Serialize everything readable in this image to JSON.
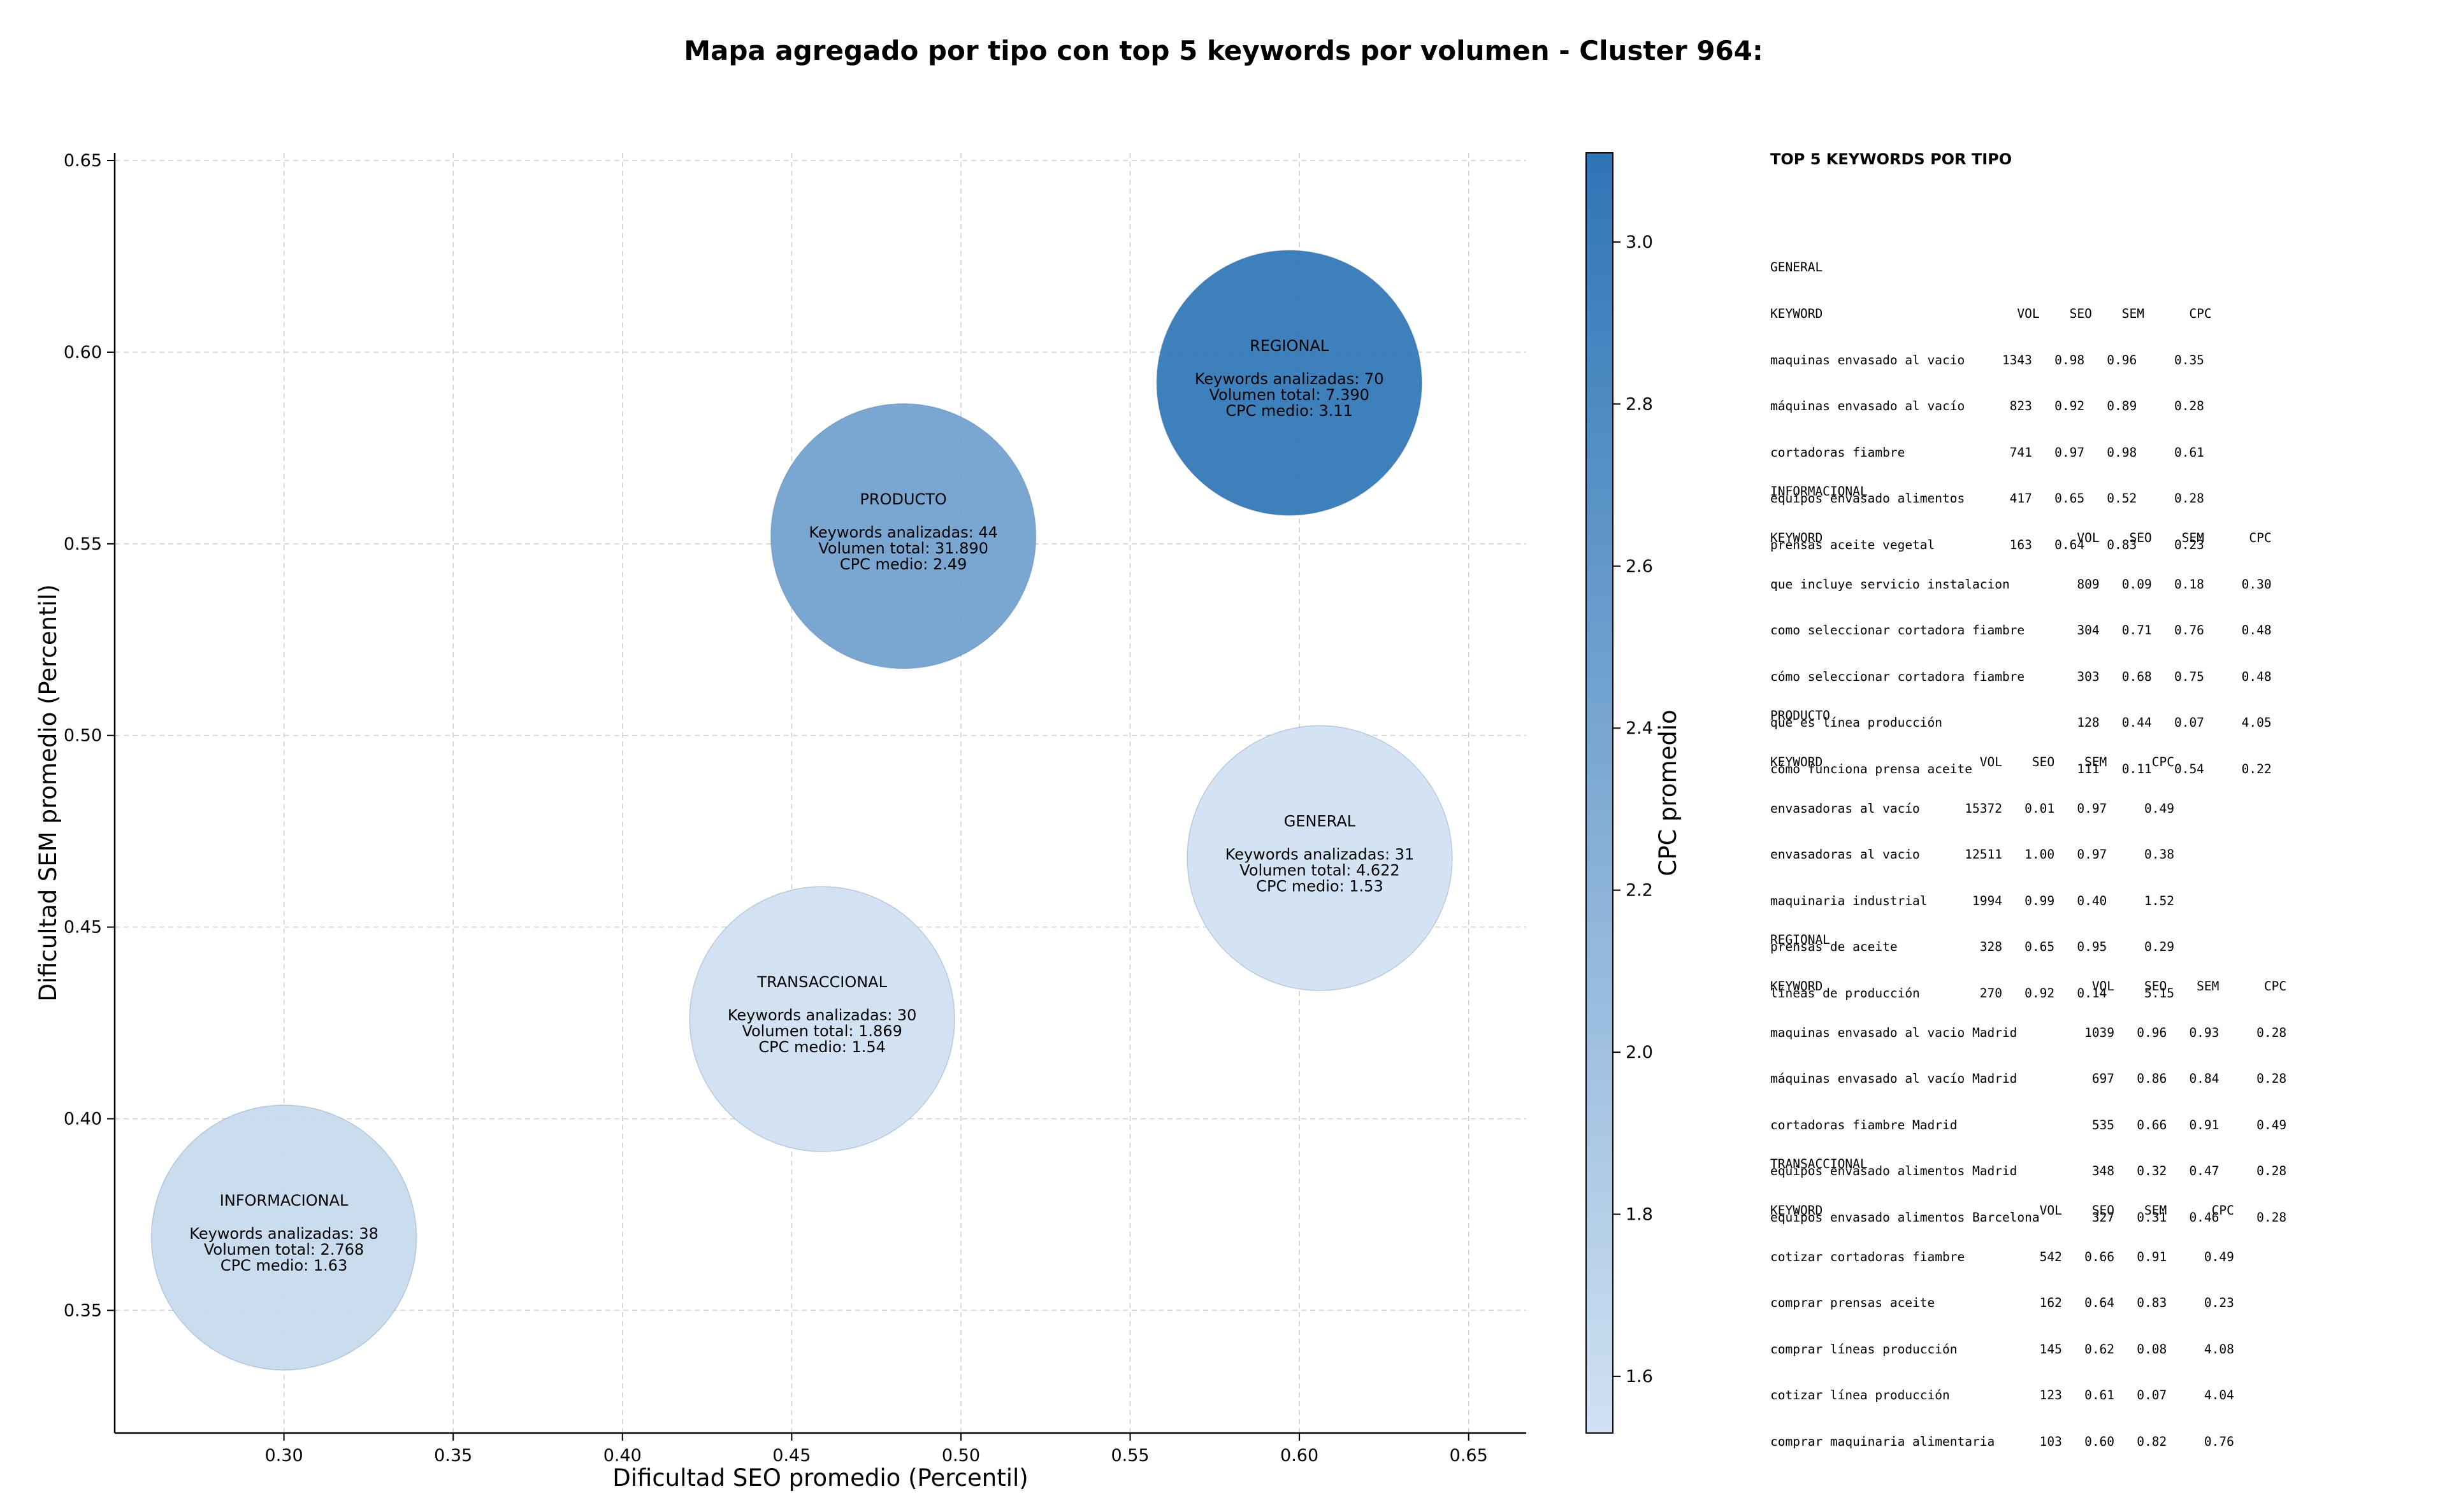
{
  "chart_data": {
    "type": "scatter",
    "title": "Mapa agregado por tipo con top 5 keywords por volumen - Cluster 964:",
    "xlabel": "Dificultad SEO promedio (Percentil)",
    "ylabel": "Dificultad SEM promedio (Percentil)",
    "xlim": [
      0.25,
      0.667
    ],
    "ylim": [
      0.318,
      0.652
    ],
    "xticks": [
      0.3,
      0.35,
      0.4,
      0.45,
      0.5,
      0.55,
      0.6,
      0.65
    ],
    "yticks": [
      0.35,
      0.4,
      0.45,
      0.5,
      0.55,
      0.6,
      0.65
    ],
    "grid": true,
    "colorbar": {
      "label": "CPC promedio",
      "range": [
        1.53,
        3.11
      ],
      "ticks": [
        1.6,
        1.8,
        2.0,
        2.2,
        2.4,
        2.6,
        2.8,
        3.0
      ]
    },
    "points": [
      {
        "label": "REGIONAL",
        "x": 0.597,
        "y": 0.592,
        "keywords_count": 70,
        "volume": 7390,
        "cpc": 3.11,
        "lines": [
          "Keywords analizadas: 70",
          "Volumen total: 7.390",
          "CPC medio: 3.11"
        ]
      },
      {
        "label": "PRODUCTO",
        "x": 0.483,
        "y": 0.552,
        "keywords_count": 44,
        "volume": 31890,
        "cpc": 2.49,
        "lines": [
          "Keywords analizadas: 44",
          "Volumen total: 31.890",
          "CPC medio: 2.49"
        ]
      },
      {
        "label": "GENERAL",
        "x": 0.606,
        "y": 0.468,
        "keywords_count": 31,
        "volume": 4622,
        "cpc": 1.53,
        "lines": [
          "Keywords analizadas: 31",
          "Volumen total: 4.622",
          "CPC medio: 1.53"
        ]
      },
      {
        "label": "TRANSACCIONAL",
        "x": 0.459,
        "y": 0.426,
        "keywords_count": 30,
        "volume": 1869,
        "cpc": 1.54,
        "lines": [
          "Keywords analizadas: 30",
          "Volumen total: 1.869",
          "CPC medio: 1.54"
        ]
      },
      {
        "label": "INFORMACIONAL",
        "x": 0.3,
        "y": 0.369,
        "keywords_count": 38,
        "volume": 2768,
        "cpc": 1.63,
        "lines": [
          "Keywords analizadas: 38",
          "Volumen total: 2.768",
          "CPC medio: 1.63"
        ]
      }
    ]
  },
  "colors": {
    "scale_low": "#d0e1f2",
    "scale_high": "#2e75b6",
    "grid": "#cfcfcf",
    "axis": "#000000"
  },
  "side_panel": {
    "heading": "TOP 5 KEYWORDS POR TIPO",
    "blocks": [
      {
        "name": "general",
        "lines": [
          "GENERAL",
          "KEYWORD                          VOL    SEO    SEM      CPC",
          "maquinas envasado al vacio     1343   0.98   0.96     0.35",
          "máquinas envasado al vacío      823   0.92   0.89     0.28",
          "cortadoras fiambre              741   0.97   0.98     0.61",
          "equipos envasado alimentos      417   0.65   0.52     0.28",
          "prensas aceite vegetal          163   0.64   0.83     0.23"
        ]
      },
      {
        "name": "informacional",
        "lines": [
          "INFORMACIONAL",
          "KEYWORD                                  VOL    SEO    SEM      CPC",
          "que incluye servicio instalacion         809   0.09   0.18     0.30",
          "como seleccionar cortadora fiambre       304   0.71   0.76     0.48",
          "cómo seleccionar cortadora fiambre       303   0.68   0.75     0.48",
          "qué es línea producción                  128   0.44   0.07     4.05",
          "cómo funciona prensa aceite              111   0.11   0.54     0.22"
        ]
      },
      {
        "name": "producto",
        "lines": [
          "PRODUCTO",
          "KEYWORD                     VOL    SEO    SEM      CPC",
          "envasadoras al vacío      15372   0.01   0.97     0.49",
          "envasadoras al vacio      12511   1.00   0.97     0.38",
          "maquinaria industrial      1994   0.99   0.40     1.52",
          "prensas de aceite           328   0.65   0.95     0.29",
          "líneas de producción        270   0.92   0.14     5.15"
        ]
      },
      {
        "name": "regional",
        "lines": [
          "REGIONAL",
          "KEYWORD                                    VOL    SEO    SEM      CPC",
          "maquinas envasado al vacio Madrid         1039   0.96   0.93     0.28",
          "máquinas envasado al vacío Madrid          697   0.86   0.84     0.28",
          "cortadoras fiambre Madrid                  535   0.66   0.91     0.49",
          "equipos envasado alimentos Madrid          348   0.32   0.47     0.28",
          "equipos envasado alimentos Barcelona       327   0.31   0.46     0.28"
        ]
      },
      {
        "name": "transaccional",
        "lines": [
          "TRANSACCIONAL",
          "KEYWORD                             VOL    SEO    SEM      CPC",
          "cotizar cortadoras fiambre          542   0.66   0.91     0.49",
          "comprar prensas aceite              162   0.64   0.83     0.23",
          "comprar líneas producción           145   0.62   0.08     4.08",
          "cotizar línea producción            123   0.61   0.07     4.04",
          "comprar maquinaria alimentaria      103   0.60   0.82     0.76"
        ]
      }
    ]
  }
}
